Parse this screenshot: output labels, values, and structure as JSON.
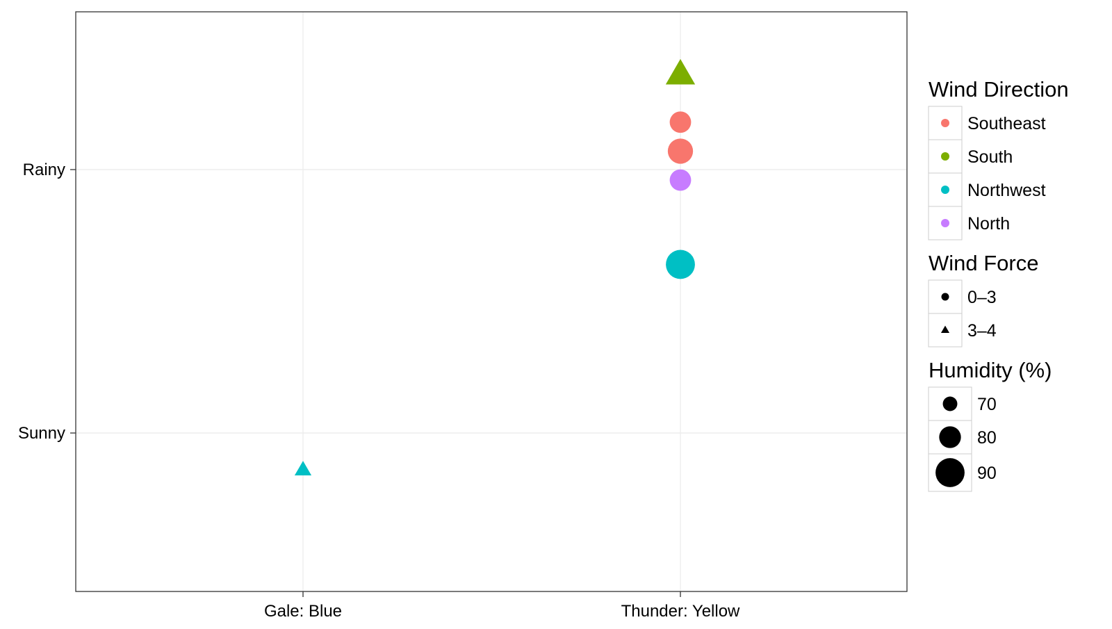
{
  "chart_data": {
    "type": "scatter",
    "title": "",
    "xlabel": "",
    "ylabel": "",
    "x_categories": [
      "Gale: Blue",
      "Thunder: Yellow"
    ],
    "y_categories": [
      "Sunny",
      "Rainy"
    ],
    "grid": true,
    "legend_position": "right",
    "points": [
      {
        "x": "Gale: Blue",
        "y": "Sunny",
        "y_offset": -0.14,
        "wind_direction": "Northwest",
        "wind_force": "3–4",
        "humidity": 70
      },
      {
        "x": "Thunder: Yellow",
        "y": "Rainy",
        "y_offset": 0.36,
        "wind_direction": "South",
        "wind_force": "3–4",
        "humidity": 85
      },
      {
        "x": "Thunder: Yellow",
        "y": "Rainy",
        "y_offset": 0.18,
        "wind_direction": "Southeast",
        "wind_force": "0–3",
        "humidity": 78
      },
      {
        "x": "Thunder: Yellow",
        "y": "Rainy",
        "y_offset": 0.07,
        "wind_direction": "Southeast",
        "wind_force": "0–3",
        "humidity": 83
      },
      {
        "x": "Thunder: Yellow",
        "y": "Rainy",
        "y_offset": -0.04,
        "wind_direction": "North",
        "wind_force": "0–3",
        "humidity": 78
      },
      {
        "x": "Thunder: Yellow",
        "y": "Rainy",
        "y_offset": -0.36,
        "wind_direction": "Northwest",
        "wind_force": "0–3",
        "humidity": 88
      }
    ],
    "legends": [
      {
        "key": "wind_direction",
        "title": "Wind Direction",
        "items": [
          {
            "label": "Southeast",
            "color": "#F8766D"
          },
          {
            "label": "South",
            "color": "#7CAE00"
          },
          {
            "label": "Northwest",
            "color": "#00BFC4"
          },
          {
            "label": "North",
            "color": "#C77CFF"
          }
        ]
      },
      {
        "key": "wind_force",
        "title": "Wind Force",
        "items": [
          {
            "label": "0–3",
            "shape": "circle"
          },
          {
            "label": "3–4",
            "shape": "triangle"
          }
        ]
      },
      {
        "key": "humidity",
        "title": "Humidity (%)",
        "items": [
          {
            "label": "70",
            "value": 70
          },
          {
            "label": "80",
            "value": 80
          },
          {
            "label": "90",
            "value": 90
          }
        ]
      }
    ]
  }
}
